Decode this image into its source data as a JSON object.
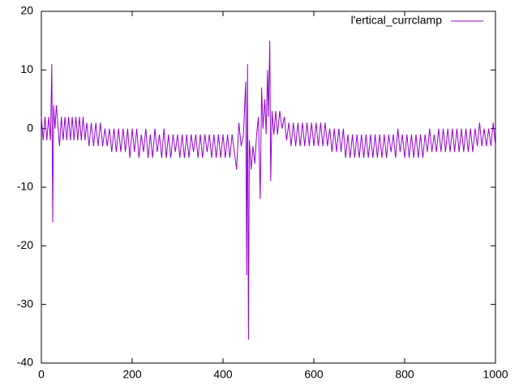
{
  "chart_data": {
    "type": "line",
    "x": [
      0,
      4,
      8,
      12,
      16,
      20,
      23,
      25,
      27,
      30,
      33,
      36,
      40,
      44,
      48,
      52,
      56,
      60,
      64,
      68,
      72,
      76,
      80,
      84,
      88,
      92,
      96,
      100,
      105,
      110,
      115,
      120,
      125,
      130,
      135,
      140,
      145,
      150,
      155,
      160,
      165,
      170,
      175,
      180,
      185,
      190,
      195,
      200,
      205,
      210,
      215,
      220,
      225,
      230,
      235,
      240,
      245,
      250,
      255,
      260,
      265,
      270,
      275,
      280,
      285,
      290,
      295,
      300,
      305,
      310,
      315,
      320,
      325,
      330,
      335,
      340,
      345,
      350,
      355,
      360,
      365,
      370,
      375,
      380,
      385,
      390,
      395,
      400,
      405,
      410,
      415,
      420,
      425,
      430,
      435,
      440,
      445,
      450,
      452,
      454,
      456,
      458,
      462,
      466,
      470,
      474,
      478,
      482,
      485,
      488,
      492,
      495,
      498,
      500,
      503,
      505,
      508,
      512,
      516,
      520,
      525,
      530,
      535,
      540,
      545,
      550,
      555,
      560,
      565,
      570,
      575,
      580,
      585,
      590,
      595,
      600,
      605,
      610,
      615,
      620,
      625,
      630,
      635,
      640,
      645,
      650,
      655,
      660,
      665,
      670,
      675,
      680,
      685,
      690,
      695,
      700,
      705,
      710,
      715,
      720,
      725,
      730,
      735,
      740,
      745,
      750,
      755,
      760,
      765,
      770,
      775,
      780,
      785,
      790,
      795,
      800,
      805,
      810,
      815,
      820,
      825,
      830,
      835,
      840,
      845,
      850,
      855,
      860,
      865,
      870,
      875,
      880,
      885,
      890,
      895,
      900,
      905,
      910,
      915,
      920,
      925,
      930,
      935,
      940,
      945,
      950,
      955,
      960,
      965,
      970,
      975,
      980,
      985,
      990,
      995,
      1000
    ],
    "series": [
      {
        "name": "l'ertical_currclamp",
        "color": "#9400d3",
        "values": [
          2,
          -2,
          2,
          -2,
          2,
          -2,
          11,
          -16,
          4,
          0,
          4,
          1,
          -3,
          2,
          -2,
          2,
          -2,
          2,
          -2,
          2,
          -2,
          2,
          -2,
          2,
          -2,
          2,
          -2,
          1,
          -3,
          1,
          -3,
          1,
          -3,
          1,
          -3,
          0,
          -3,
          0,
          -4,
          0,
          -4,
          0,
          -4,
          0,
          -4,
          0,
          -5,
          0,
          -4,
          0,
          -5,
          -1,
          -4,
          0,
          -5,
          -1,
          -5,
          0,
          -4,
          -1,
          -5,
          0,
          -5,
          -1,
          -5,
          -1,
          -4,
          -1,
          -5,
          -1,
          -5,
          -1,
          -5,
          -1,
          -4,
          -1,
          -5,
          -1,
          -5,
          -1,
          -4,
          -1,
          -5,
          -1,
          -5,
          -1,
          -5,
          -1,
          -5,
          -1,
          -5,
          -1,
          -4,
          -7,
          1,
          -3,
          -1,
          8,
          -25,
          11,
          -36,
          -2,
          -7,
          -3,
          -6,
          -1,
          2,
          -12,
          7,
          0,
          5,
          -1,
          10,
          2,
          15,
          -9,
          3,
          -1,
          3,
          -1,
          3,
          0,
          2,
          -2,
          1,
          -3,
          1,
          -3,
          1,
          -3,
          1,
          -3,
          1,
          -3,
          1,
          -3,
          1,
          -3,
          1,
          -3,
          1,
          -3,
          0,
          -4,
          0,
          -4,
          0,
          -4,
          0,
          -5,
          -1,
          -5,
          -1,
          -5,
          -1,
          -5,
          -1,
          -5,
          -1,
          -5,
          -1,
          -5,
          -1,
          -5,
          -1,
          -5,
          -1,
          -5,
          -1,
          -4,
          -1,
          -5,
          0,
          -4,
          -1,
          -5,
          -1,
          -5,
          -1,
          -5,
          -1,
          -5,
          -1,
          -5,
          -1,
          -4,
          0,
          -4,
          -1,
          -4,
          0,
          -4,
          0,
          -4,
          0,
          -4,
          0,
          -4,
          0,
          -4,
          0,
          -4,
          0,
          -4,
          0,
          -4,
          0,
          -3,
          1,
          -3,
          0,
          -3,
          0,
          -3,
          1,
          -3
        ]
      }
    ],
    "xlim": [
      0,
      1000
    ],
    "ylim": [
      -40,
      20
    ],
    "xticks": [
      0,
      200,
      400,
      600,
      800,
      1000
    ],
    "yticks": [
      -40,
      -30,
      -20,
      -10,
      0,
      10,
      20
    ],
    "legend": "top-right"
  }
}
